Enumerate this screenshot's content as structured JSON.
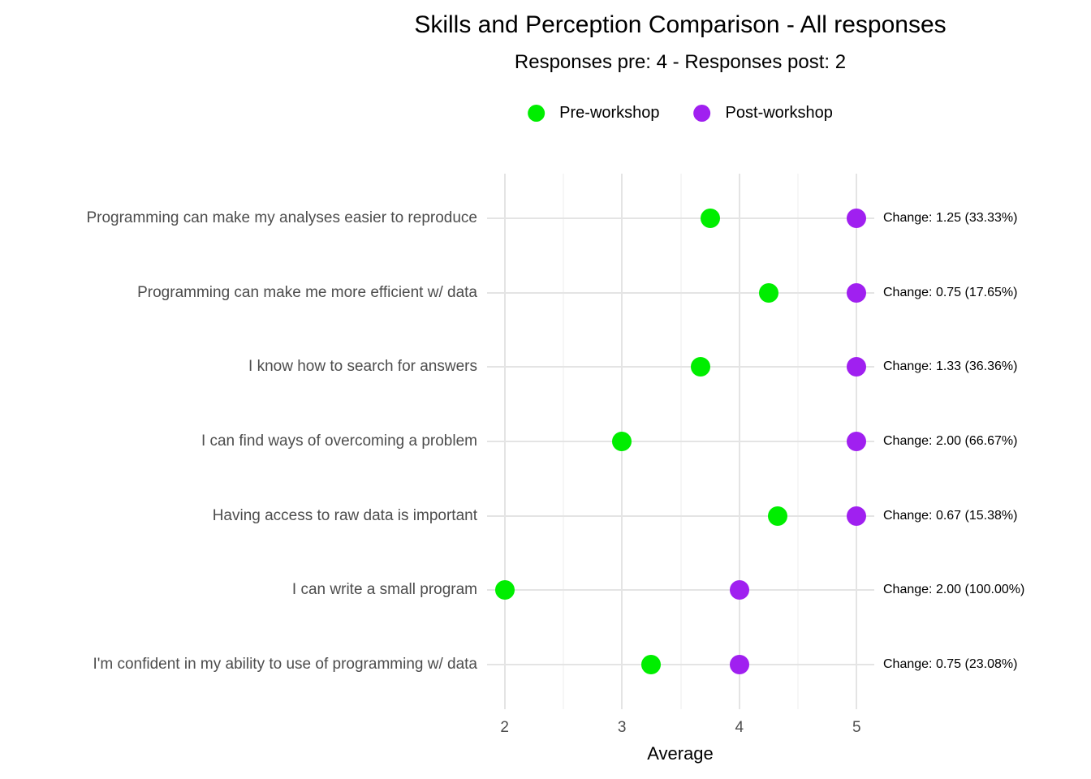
{
  "title": "Skills and Perception Comparison - All responses",
  "subtitle": "Responses pre: 4 - Responses post: 2",
  "legend": {
    "items": [
      {
        "label": "Pre-workshop",
        "color": "#00ee00"
      },
      {
        "label": "Post-workshop",
        "color": "#a020f0"
      }
    ]
  },
  "chart_data": {
    "type": "scatter",
    "variant": "horizontal-dot-plot",
    "title": "Skills and Perception Comparison - All responses",
    "subtitle": "Responses pre: 4 - Responses post: 2",
    "xlabel": "Average",
    "ylabel": "",
    "xlim": [
      1.85,
      5.15
    ],
    "x_major_ticks": [
      2,
      3,
      4,
      5
    ],
    "x_minor_ticks": [
      2.5,
      3.5,
      4.5
    ],
    "grid": "on",
    "legend_position": "top-center",
    "series": [
      {
        "name": "Pre-workshop",
        "color": "#00ee00"
      },
      {
        "name": "Post-workshop",
        "color": "#a020f0"
      }
    ],
    "rows": [
      {
        "label": "Programming can make my analyses easier to reproduce",
        "pre": 3.75,
        "post": 5.0,
        "annotation": "Change: 1.25 (33.33%)"
      },
      {
        "label": "Programming can make me more efficient w/ data",
        "pre": 4.25,
        "post": 5.0,
        "annotation": "Change: 0.75 (17.65%)"
      },
      {
        "label": "I know how to search for answers",
        "pre": 3.67,
        "post": 5.0,
        "annotation": "Change: 1.33 (36.36%)"
      },
      {
        "label": "I can find ways of overcoming a problem",
        "pre": 3.0,
        "post": 5.0,
        "annotation": "Change: 2.00 (66.67%)"
      },
      {
        "label": "Having access to raw data is important",
        "pre": 4.33,
        "post": 5.0,
        "annotation": "Change: 0.67 (15.38%)"
      },
      {
        "label": "I can write a small program",
        "pre": 2.0,
        "post": 4.0,
        "annotation": "Change: 2.00 (100.00%)"
      },
      {
        "label": "I'm confident in my ability to use of programming w/ data",
        "pre": 3.25,
        "post": 4.0,
        "annotation": "Change: 0.75 (23.08%)"
      }
    ]
  }
}
